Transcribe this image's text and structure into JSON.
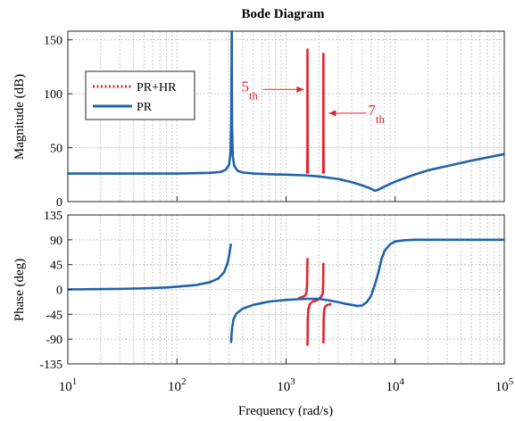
{
  "chart_data": {
    "type": "line",
    "title": "Bode Diagram",
    "xlabel": "Frequency  (rad/s)",
    "xscale": "log",
    "xlim": [
      10,
      100000
    ],
    "x_ticks": [
      {
        "value": 10,
        "base": "10",
        "exp": "1"
      },
      {
        "value": 100,
        "base": "10",
        "exp": "2"
      },
      {
        "value": 1000,
        "base": "10",
        "exp": "3"
      },
      {
        "value": 10000,
        "base": "10",
        "exp": "4"
      },
      {
        "value": 100000,
        "base": "10",
        "exp": "5"
      }
    ],
    "grid": true,
    "colors": {
      "pr": "#1f63ac",
      "prhr": "#e0262d",
      "annotation": "#e0262d"
    },
    "legend": {
      "placement": "upper-left of magnitude panel",
      "entries": [
        {
          "label": "PR+HR",
          "series": "prhr",
          "style": "dotted"
        },
        {
          "label": "PR",
          "series": "pr",
          "style": "solid"
        }
      ]
    },
    "magnitude": {
      "ylabel": "Magnitude (dB)",
      "ylim": [
        0,
        158
      ],
      "yticks": [
        "0",
        "50",
        "100",
        "150"
      ],
      "ytick_values": [
        0,
        50,
        100,
        150
      ],
      "series": [
        {
          "name": "PR",
          "key": "pr",
          "x": [
            10,
            100,
            200,
            250,
            280,
            300,
            310,
            315,
            318,
            320,
            325,
            335,
            360,
            400,
            500,
            700,
            1000,
            1500,
            2000,
            3000,
            4000,
            5000,
            6000,
            6500,
            7000,
            8000,
            10000,
            15000,
            20000,
            30000,
            50000,
            100000
          ],
          "y": [
            26,
            26,
            26.6,
            27.4,
            29.5,
            34,
            45,
            80,
            158,
            70,
            42,
            33,
            28.5,
            27,
            26,
            25.4,
            25,
            24.3,
            23.3,
            21,
            18,
            15,
            12,
            10,
            11,
            14,
            18.5,
            25,
            29,
            33,
            38,
            44
          ]
        },
        {
          "name": "PR+HR",
          "key": "prhr",
          "segments": [
            {
              "x": [
                1560,
                1565,
                1570,
                1571,
                1575,
                1580,
                1590
              ],
              "y": [
                26,
                30,
                60,
                141,
                60,
                30,
                26
              ]
            },
            {
              "x": [
                2180,
                2190,
                2195,
                2199,
                2203,
                2210,
                2220
              ],
              "y": [
                26,
                30,
                60,
                137,
                60,
                30,
                26
              ]
            }
          ]
        }
      ],
      "annotations": [
        {
          "main": "5",
          "sub": "th",
          "points_to": 1570,
          "y": 104
        },
        {
          "main": "7",
          "sub": "th",
          "points_to": 2199,
          "y": 82
        }
      ]
    },
    "phase": {
      "ylabel": "Phase (deg)",
      "ylim": [
        -135,
        135
      ],
      "yticks": [
        "-135",
        "-90",
        "-45",
        "0",
        "45",
        "90",
        "135"
      ],
      "ytick_values": [
        -135,
        -90,
        -45,
        0,
        45,
        90,
        135
      ],
      "series": [
        {
          "name": "PR",
          "key": "pr",
          "segments": [
            {
              "x": [
                10,
                30,
                50,
                80,
                100,
                150,
                200,
                240,
                270,
                290,
                300,
                305,
                310,
                313
              ],
              "y": [
                0,
                1,
                2,
                3.5,
                5,
                8,
                13,
                20,
                31,
                47,
                60,
                70,
                78,
                83
              ]
            },
            {
              "x": [
                313,
                316,
                320,
                330,
                350,
                400,
                500,
                700,
                1000,
                1500,
                2000,
                2500,
                3000,
                3500,
                4000,
                4500,
                5000,
                5500,
                6000,
                6500,
                7000,
                7500,
                8000,
                9000,
                10000,
                12000,
                15000,
                20000,
                50000,
                100000
              ],
              "y": [
                -97,
                -85,
                -70,
                -54,
                -44,
                -35,
                -28,
                -22,
                -19,
                -17,
                -17,
                -20,
                -23,
                -26,
                -28,
                -30,
                -29,
                -23,
                -12,
                8,
                30,
                55,
                70,
                82,
                87,
                89,
                90,
                90,
                90,
                90
              ]
            }
          ]
        },
        {
          "name": "PR+HR",
          "key": "prhr",
          "segments": [
            {
              "x": [
                1300,
                1400,
                1500,
                1540,
                1560,
                1571
              ],
              "y": [
                -16,
                -14,
                -11,
                -5,
                12,
                57
              ]
            },
            {
              "x": [
                1571,
                1582,
                1600,
                1640,
                1700
              ],
              "y": [
                -102,
                -52,
                -37,
                -28,
                -24
              ]
            },
            {
              "x": [
                1700,
                1900,
                2000,
                2100,
                2170,
                2190,
                2199
              ],
              "y": [
                -23,
                -20,
                -17,
                -13,
                -7,
                10,
                48
              ]
            },
            {
              "x": [
                2199,
                2210,
                2230,
                2270,
                2350,
                2600
              ],
              "y": [
                -98,
                -57,
                -40,
                -32,
                -29,
                -26
              ]
            }
          ]
        }
      ]
    }
  }
}
